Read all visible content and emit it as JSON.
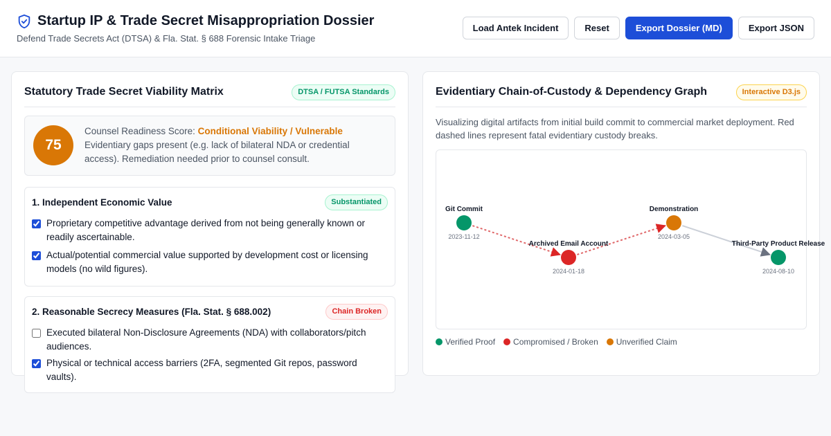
{
  "header": {
    "title": "Startup IP & Trade Secret Misappropriation Dossier",
    "subtitle": "Defend Trade Secrets Act (DTSA) & Fla. Stat. § 688 Forensic Intake Triage",
    "icon": "shield-check-icon",
    "buttons": {
      "load": "Load Antek Incident",
      "reset": "Reset",
      "export_md": "Export Dossier (MD)",
      "export_json": "Export JSON"
    }
  },
  "colors": {
    "primary": "#1d4ed8",
    "verified": "#059669",
    "broken": "#dc2626",
    "unverified": "#d97706"
  },
  "matrix": {
    "title": "Statutory Trade Secret Viability Matrix",
    "badge": "DTSA / FUTSA Standards",
    "score": {
      "value": "75",
      "label": "Counsel Readiness Score:",
      "status": "Conditional Viability / Vulnerable",
      "description": "Evidentiary gaps present (e.g. lack of bilateral NDA or credential access). Remediation needed prior to counsel consult."
    },
    "sections": [
      {
        "title": "1. Independent Economic Value",
        "badge": "Substantiated",
        "items": [
          {
            "label": "Proprietary competitive advantage derived from not being generally known or readily ascertainable.",
            "checked": true
          },
          {
            "label": "Actual/potential commercial value supported by development cost or licensing models (no wild figures).",
            "checked": true
          }
        ]
      },
      {
        "title": "2. Reasonable Secrecy Measures (Fla. Stat. § 688.002)",
        "badge": "Chain Broken",
        "items": [
          {
            "label": "Executed bilateral Non-Disclosure Agreements (NDA) with collaborators/pitch audiences.",
            "checked": false
          },
          {
            "label": "Physical or technical access barriers (2FA, segmented Git repos, password vaults).",
            "checked": true
          }
        ]
      }
    ]
  },
  "graph": {
    "title": "Evidentiary Chain-of-Custody & Dependency Graph",
    "badge": "Interactive D3.js",
    "description": "Visualizing digital artifacts from initial build commit to commercial market deployment. Red dashed lines represent fatal evidentiary custody breaks.",
    "nodes": [
      {
        "label": "Git Commit",
        "date": "2023-11-12",
        "status": "verified"
      },
      {
        "label": "Archived Email Account",
        "date": "2024-01-18",
        "status": "broken"
      },
      {
        "label": "Demonstration",
        "date": "2024-03-05",
        "status": "unverified"
      },
      {
        "label": "Third-Party Product Release",
        "date": "2024-08-10",
        "status": "verified"
      }
    ],
    "edges": [
      {
        "from": 0,
        "to": 1,
        "type": "broken"
      },
      {
        "from": 1,
        "to": 2,
        "type": "broken"
      },
      {
        "from": 2,
        "to": 3,
        "type": "normal"
      }
    ],
    "legend": [
      {
        "label": "Verified Proof",
        "status": "verified"
      },
      {
        "label": "Compromised / Broken",
        "status": "broken"
      },
      {
        "label": "Unverified Claim",
        "status": "unverified"
      }
    ]
  }
}
